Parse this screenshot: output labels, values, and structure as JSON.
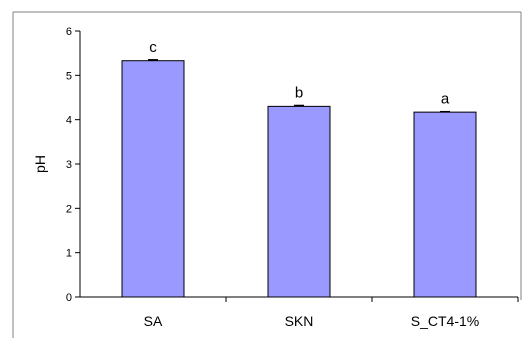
{
  "chart_data": {
    "type": "bar",
    "title": "",
    "xlabel": "",
    "ylabel": "pH",
    "ylim": [
      0,
      6
    ],
    "yticks": [
      0,
      1,
      2,
      3,
      4,
      5,
      6
    ],
    "grid": false,
    "legend": "none",
    "categories": [
      "SA",
      "SKN",
      "S_CT4-1%"
    ],
    "values": [
      5.33,
      4.3,
      4.17
    ],
    "errors": [
      0.02,
      0.02,
      0.01
    ],
    "data_labels": [
      "c",
      "b",
      "a"
    ],
    "colors": {
      "bar_fill": "#9999ff",
      "bar_stroke": "#000000",
      "axis": "#000000",
      "frame": "#808080"
    }
  }
}
